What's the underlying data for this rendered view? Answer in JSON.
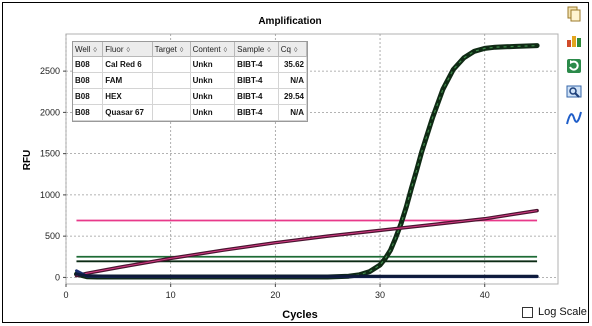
{
  "chart_data": {
    "type": "line",
    "title": "Amplification",
    "xlabel": "Cycles",
    "ylabel": "RFU",
    "xlim": [
      0,
      47
    ],
    "ylim": [
      -80,
      2950
    ],
    "x_ticks": [
      0,
      10,
      20,
      30,
      40
    ],
    "y_ticks": [
      0,
      500,
      1000,
      1500,
      2000,
      2500
    ],
    "grid": true,
    "series": [
      {
        "color": "#0f2a14",
        "x": [
          1,
          2,
          3,
          5,
          10,
          15,
          20,
          25,
          27,
          28,
          29,
          30,
          30.5,
          31,
          31.5,
          32,
          32.5,
          33,
          33.5,
          34,
          35,
          36,
          37,
          38,
          39,
          40,
          41,
          42,
          43,
          44,
          45
        ],
        "y": [
          40,
          8,
          5,
          5,
          5,
          5,
          5,
          5,
          15,
          30,
          70,
          150,
          230,
          330,
          480,
          650,
          850,
          1080,
          1300,
          1530,
          1930,
          2280,
          2520,
          2660,
          2740,
          2775,
          2790,
          2795,
          2800,
          2805,
          2810
        ]
      },
      {
        "color": "#4a1430",
        "x": [
          1,
          2,
          5,
          10,
          15,
          20,
          25,
          30,
          35,
          40,
          45
        ],
        "y": [
          20,
          50,
          120,
          230,
          330,
          420,
          500,
          570,
          640,
          710,
          810
        ]
      },
      {
        "color": "#1a2d6e",
        "x": [
          1,
          2,
          5,
          10,
          20,
          30,
          40,
          45
        ],
        "y": [
          80,
          15,
          10,
          10,
          10,
          10,
          10,
          10
        ]
      },
      {
        "color": "#0e1a3a",
        "x": [
          1,
          2,
          5,
          10,
          20,
          30,
          40,
          45
        ],
        "y": [
          40,
          20,
          15,
          15,
          15,
          15,
          15,
          15
        ]
      }
    ],
    "thresholds": [
      {
        "y": 690,
        "color": "#e8398a"
      },
      {
        "y": 250,
        "color": "#1d6b35"
      },
      {
        "y": 195,
        "color": "#0b2a14"
      },
      {
        "y": 15,
        "color": "#2a3f9a"
      }
    ]
  },
  "table": {
    "headers": [
      "Well",
      "Fluor",
      "Target",
      "Content",
      "Sample",
      "Cq"
    ],
    "rows": [
      [
        "B08",
        "Cal Red 6",
        "",
        "Unkn",
        "BIBT-4",
        "35.62"
      ],
      [
        "B08",
        "FAM",
        "",
        "Unkn",
        "BIBT-4",
        "N/A"
      ],
      [
        "B08",
        "HEX",
        "",
        "Unkn",
        "BIBT-4",
        "29.54"
      ],
      [
        "B08",
        "Quasar 67",
        "",
        "Unkn",
        "BIBT-4",
        "N/A"
      ]
    ]
  },
  "toolbar": {
    "icons": [
      "copy-icon",
      "export-data-icon",
      "refresh-icon",
      "zoom-icon",
      "trace-style-icon"
    ]
  },
  "log_scale": {
    "label": "Log Scale",
    "checked": false
  }
}
